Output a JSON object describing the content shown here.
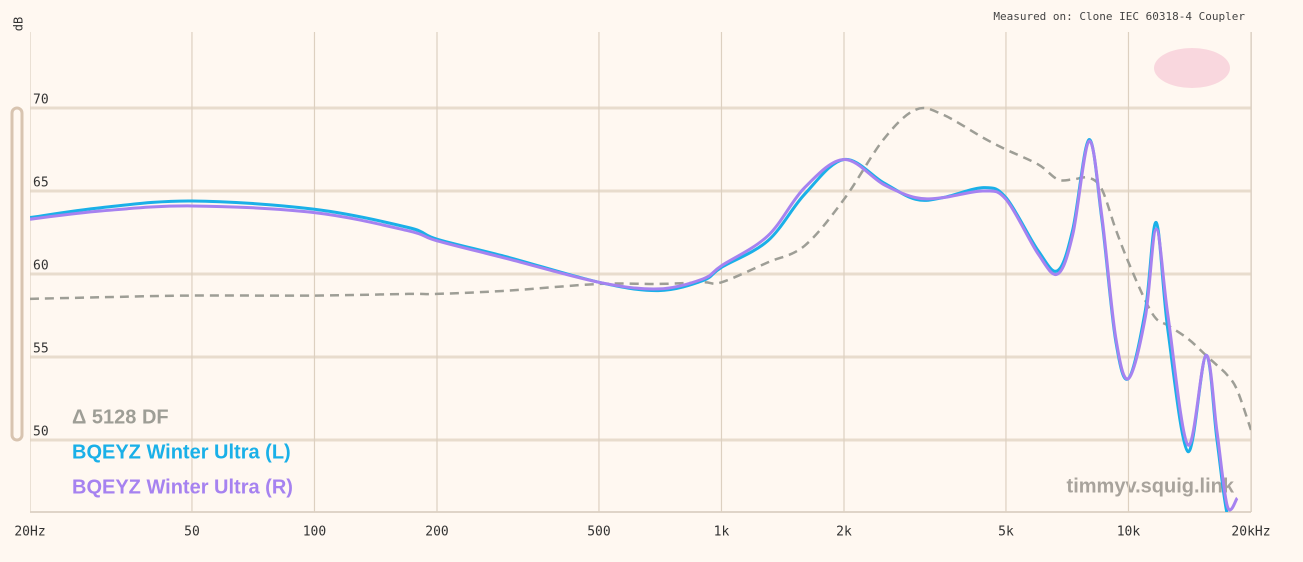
{
  "chart_data": {
    "type": "line",
    "note_text": "Measured on: Clone IEC 60318-4 Coupler",
    "watermark": "timmyv.squig.link",
    "y_label": "dB",
    "x_scale": "log",
    "legend_position": "bottom-left",
    "grid": true,
    "x": [
      20,
      30,
      50,
      100,
      170,
      200,
      300,
      500,
      700,
      900,
      1000,
      1300,
      1600,
      2000,
      2500,
      3000,
      3500,
      4400,
      5000,
      6000,
      6700,
      7300,
      8000,
      8600,
      9300,
      10000,
      11000,
      11700,
      12500,
      14000,
      15500,
      16500,
      17500,
      18500,
      20000
    ],
    "series": [
      {
        "name": "Δ 5128 DF",
        "color": "#9e9e96",
        "dash": true,
        "values": [
          58.5,
          58.6,
          58.7,
          58.7,
          58.8,
          58.8,
          59.0,
          59.4,
          59.4,
          59.5,
          59.5,
          60.7,
          61.7,
          64.5,
          68.1,
          69.9,
          69.6,
          68.2,
          67.5,
          66.6,
          65.7,
          65.7,
          65.8,
          65.1,
          62.7,
          60.7,
          58.4,
          57.3,
          56.9,
          56.1,
          55.1,
          54.5,
          53.9,
          53.0,
          50.6
        ]
      },
      {
        "name": "BQEYZ Winter Ultra (L)",
        "color": "#1ab0e8",
        "dash": false,
        "values": [
          63.4,
          64.0,
          64.4,
          63.9,
          62.8,
          62.1,
          61.0,
          59.5,
          59.0,
          59.6,
          60.4,
          62.0,
          64.8,
          66.9,
          65.5,
          64.5,
          64.6,
          65.2,
          64.6,
          61.4,
          60.2,
          62.7,
          68.1,
          63.3,
          56.0,
          53.7,
          57.8,
          63.1,
          56.6,
          49.3,
          55.1,
          50.0,
          45.5,
          45.5,
          null
        ]
      },
      {
        "name": "BQEYZ Winter Ultra (R)",
        "color": "#a682f0",
        "dash": false,
        "values": [
          63.3,
          63.8,
          64.1,
          63.7,
          62.6,
          62.0,
          60.9,
          59.5,
          59.1,
          59.7,
          60.5,
          62.3,
          65.2,
          66.9,
          65.4,
          64.6,
          64.6,
          65.0,
          64.5,
          61.2,
          60.0,
          62.4,
          68.0,
          63.5,
          56.2,
          53.7,
          57.4,
          62.7,
          57.5,
          49.7,
          55.1,
          50.5,
          46.0,
          46.5,
          null
        ]
      }
    ],
    "xlim": [
      20,
      20000
    ],
    "xticks": [
      {
        "value": 20,
        "label": "20Hz"
      },
      50,
      100,
      200,
      500,
      {
        "value": 1000,
        "label": "1k"
      },
      {
        "value": 2000,
        "label": "2k"
      },
      {
        "value": 5000,
        "label": "5k"
      },
      {
        "value": 10000,
        "label": "10k"
      },
      {
        "value": 20000,
        "label": "20kHz"
      }
    ],
    "ylim": [
      45.66,
      74.58
    ],
    "yticks": [
      50,
      55,
      60,
      65,
      70
    ]
  }
}
